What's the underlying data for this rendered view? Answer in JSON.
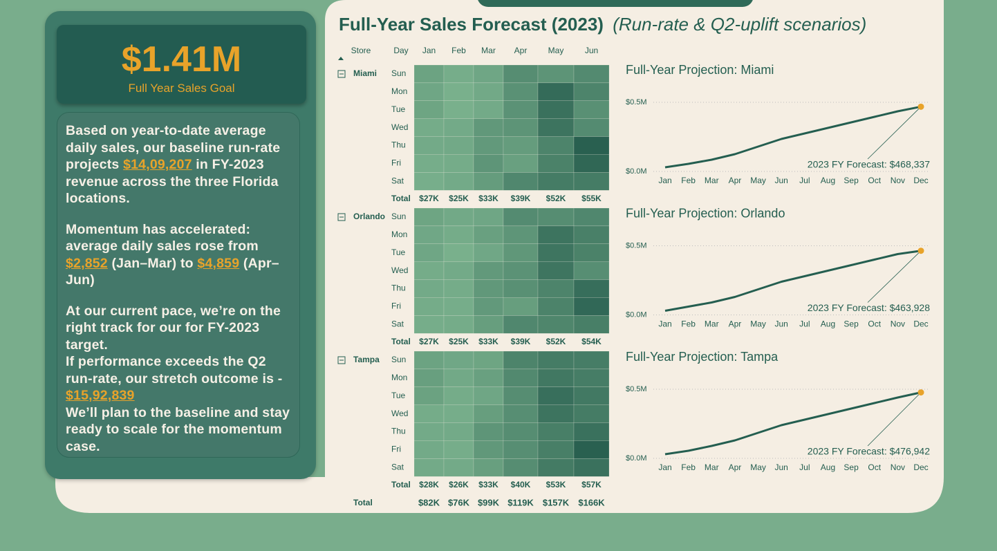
{
  "kpi": {
    "value": "$1.41M",
    "label": "Full Year Sales Goal"
  },
  "narrative": {
    "paragraphs": [
      {
        "segments": [
          {
            "text": "Based on  year-to-date average daily sales, our baseline run-rate projects "
          },
          {
            "text": "$14,09,207",
            "highlight": true
          },
          {
            "text": " in FY-2023 revenue across the three Florida locations."
          }
        ]
      },
      {
        "segments": [
          {
            "text": "Momentum has accelerated: average daily sales rose from "
          },
          {
            "text": "$2,852",
            "highlight": true
          },
          {
            "text": " (Jan–Mar) to "
          },
          {
            "text": "$4,859",
            "highlight": true
          },
          {
            "text": " (Apr–Jun)"
          }
        ]
      },
      {
        "segments": [
          {
            "text": "At our current pace, we’re on the right track for our for FY-2023 target."
          }
        ]
      },
      {
        "segments": [
          {
            "text": "If performance exceeds the Q2 run-rate, our stretch outcome is - "
          },
          {
            "text": "$15,92,839",
            "highlight": true
          }
        ]
      },
      {
        "segments": [
          {
            "text": "We’ll plan to the baseline and stay ready to scale for the momentum case."
          }
        ]
      }
    ],
    "highlight_color": "#e8a32a"
  },
  "header": {
    "title": "Full-Year Sales Forecast (2023)",
    "subtitle": "(Run-rate & Q2-uplift scenarios)"
  },
  "matrix": {
    "headers": [
      "Store",
      "Day",
      "Jan",
      "Feb",
      "Mar",
      "Apr",
      "May",
      "Jun"
    ],
    "color_scale": {
      "min": 3,
      "max": 9.5,
      "low_color": "#7db48f",
      "high_color": "#22594b"
    },
    "stores": [
      {
        "name": "Miami",
        "total_label": "Total",
        "totals": [
          "$27K",
          "$25K",
          "$33K",
          "$39K",
          "$52K",
          "$55K"
        ],
        "rows": [
          {
            "day": "Sun",
            "values": [
              4.2,
              3.5,
              4.0,
              5.8,
              5.3,
              6.0
            ]
          },
          {
            "day": "Mon",
            "values": [
              4.0,
              3.3,
              3.8,
              5.5,
              8.2,
              6.4
            ]
          },
          {
            "day": "Tue",
            "values": [
              4.1,
              3.3,
              3.7,
              5.4,
              7.8,
              5.6
            ]
          },
          {
            "day": "Wed",
            "values": [
              3.6,
              3.7,
              5.0,
              5.3,
              7.6,
              5.9
            ]
          },
          {
            "day": "Thu",
            "values": [
              3.7,
              3.8,
              4.9,
              4.7,
              6.4,
              9.0
            ]
          },
          {
            "day": "Fri",
            "values": [
              3.5,
              3.6,
              5.2,
              4.4,
              6.6,
              8.5
            ]
          },
          {
            "day": "Sat",
            "values": [
              3.4,
              3.7,
              4.7,
              6.2,
              7.0,
              7.0
            ]
          }
        ]
      },
      {
        "name": "Orlando",
        "total_label": "Total",
        "totals": [
          "$27K",
          "$25K",
          "$33K",
          "$39K",
          "$52K",
          "$54K"
        ],
        "rows": [
          {
            "day": "Sun",
            "values": [
              4.1,
              3.8,
              4.0,
              5.9,
              5.8,
              6.2
            ]
          },
          {
            "day": "Mon",
            "values": [
              3.9,
              3.6,
              4.4,
              5.2,
              7.6,
              6.7
            ]
          },
          {
            "day": "Tue",
            "values": [
              4.0,
              3.3,
              3.9,
              5.1,
              7.5,
              6.6
            ]
          },
          {
            "day": "Wed",
            "values": [
              3.6,
              3.7,
              4.9,
              5.4,
              7.5,
              5.7
            ]
          },
          {
            "day": "Thu",
            "values": [
              3.7,
              3.6,
              5.0,
              5.6,
              6.4,
              8.0
            ]
          },
          {
            "day": "Fri",
            "values": [
              3.6,
              3.5,
              4.9,
              4.6,
              6.5,
              8.4
            ]
          },
          {
            "day": "Sat",
            "values": [
              3.5,
              3.6,
              4.6,
              6.2,
              6.3,
              6.8
            ]
          }
        ]
      },
      {
        "name": "Tampa",
        "total_label": "Total",
        "totals": [
          "$28K",
          "$26K",
          "$33K",
          "$40K",
          "$53K",
          "$57K"
        ],
        "rows": [
          {
            "day": "Sun",
            "values": [
              4.2,
              3.9,
              4.1,
              6.4,
              7.0,
              6.9
            ]
          },
          {
            "day": "Mon",
            "values": [
              4.5,
              3.8,
              4.4,
              6.1,
              7.3,
              6.9
            ]
          },
          {
            "day": "Tue",
            "values": [
              4.3,
              3.6,
              4.0,
              5.8,
              7.9,
              7.2
            ]
          },
          {
            "day": "Wed",
            "values": [
              3.6,
              3.5,
              4.6,
              5.7,
              7.6,
              7.0
            ]
          },
          {
            "day": "Thu",
            "values": [
              3.7,
              3.7,
              5.2,
              5.8,
              6.8,
              7.8
            ]
          },
          {
            "day": "Fri",
            "values": [
              3.7,
              3.5,
              5.0,
              5.7,
              6.8,
              9.0
            ]
          },
          {
            "day": "Sat",
            "values": [
              3.7,
              3.7,
              4.5,
              5.8,
              7.1,
              7.8
            ]
          }
        ]
      }
    ],
    "grand_total": {
      "label": "Total",
      "values": [
        "$82K",
        "$76K",
        "$99K",
        "$119K",
        "$157K",
        "$166K"
      ]
    }
  },
  "chart_data": [
    {
      "type": "line",
      "title": "Full-Year Projection: Miami",
      "categories": [
        "Jan",
        "Feb",
        "Mar",
        "Apr",
        "May",
        "Jun",
        "Jul",
        "Aug",
        "Sep",
        "Oct",
        "Nov",
        "Dec"
      ],
      "values": [
        0.03,
        0.055,
        0.085,
        0.125,
        0.18,
        0.235,
        0.275,
        0.315,
        0.355,
        0.395,
        0.435,
        0.468337
      ],
      "color": "#245e50",
      "marker_color": "#e8a32a",
      "ylim": [
        0,
        0.5
      ],
      "yticks": [
        {
          "value": 0,
          "label": "$0.0M"
        },
        {
          "value": 0.5,
          "label": "$0.5M"
        }
      ],
      "grid": true,
      "annotation": "2023 FY Forecast: $468,337"
    },
    {
      "type": "line",
      "title": "Full-Year Projection: Orlando",
      "categories": [
        "Jan",
        "Feb",
        "Mar",
        "Apr",
        "May",
        "Jun",
        "Jul",
        "Aug",
        "Sep",
        "Oct",
        "Nov",
        "Dec"
      ],
      "values": [
        0.03,
        0.06,
        0.09,
        0.13,
        0.185,
        0.24,
        0.28,
        0.32,
        0.36,
        0.4,
        0.44,
        0.463928
      ],
      "color": "#245e50",
      "marker_color": "#e8a32a",
      "ylim": [
        0,
        0.5
      ],
      "yticks": [
        {
          "value": 0,
          "label": "$0.0M"
        },
        {
          "value": 0.5,
          "label": "$0.5M"
        }
      ],
      "grid": true,
      "annotation": "2023 FY Forecast: $463,928"
    },
    {
      "type": "line",
      "title": "Full-Year Projection: Tampa",
      "categories": [
        "Jan",
        "Feb",
        "Mar",
        "Apr",
        "May",
        "Jun",
        "Jul",
        "Aug",
        "Sep",
        "Oct",
        "Nov",
        "Dec"
      ],
      "values": [
        0.03,
        0.055,
        0.09,
        0.13,
        0.185,
        0.24,
        0.28,
        0.32,
        0.36,
        0.4,
        0.44,
        0.476942
      ],
      "color": "#245e50",
      "marker_color": "#e8a32a",
      "ylim": [
        0,
        0.5
      ],
      "yticks": [
        {
          "value": 0,
          "label": "$0.0M"
        },
        {
          "value": 0.5,
          "label": "$0.5M"
        }
      ],
      "grid": true,
      "annotation": "2023 FY Forecast: $476,942"
    }
  ]
}
